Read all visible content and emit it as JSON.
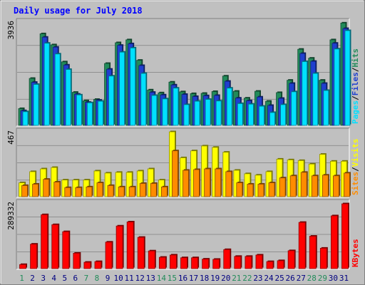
{
  "colors": {
    "background": "#c0c0c0",
    "plot_bg": "#c0c0c0",
    "title": "#0000ff",
    "hits": "#228b5a",
    "files": "#1f3fcf",
    "pages": "#00e0ff",
    "visits": "#ffff00",
    "sites": "#ff8c00",
    "kbytes": "#ff0000",
    "weekend_label": "#228b5a",
    "weekday_label": "#000080"
  },
  "chart_data": [
    {
      "type": "bar",
      "title": "Daily usage for July 2018",
      "ymax_label": "3936",
      "ymax": 3936,
      "legend": [
        {
          "name": "Pages",
          "color": "#00e0ff"
        },
        {
          "name": "Files",
          "color": "#1f3fcf"
        },
        {
          "name": "Hits",
          "color": "#228b5a"
        }
      ],
      "categories": [
        "1",
        "2",
        "3",
        "4",
        "5",
        "6",
        "7",
        "8",
        "9",
        "10",
        "11",
        "12",
        "13",
        "14",
        "15",
        "16",
        "17",
        "18",
        "19",
        "20",
        "21",
        "22",
        "23",
        "24",
        "25",
        "26",
        "27",
        "28",
        "29",
        "30",
        "31"
      ],
      "weekend_days": [
        "1",
        "7",
        "8",
        "14",
        "15",
        "21",
        "22",
        "28",
        "29"
      ],
      "series": [
        {
          "name": "Hits",
          "values": [
            640,
            1790,
            3490,
            3070,
            2420,
            1260,
            940,
            990,
            2360,
            3150,
            3260,
            2480,
            1350,
            1240,
            1650,
            1280,
            1210,
            1220,
            1290,
            1880,
            1300,
            1040,
            1300,
            920,
            1250,
            1720,
            2900,
            2560,
            1720,
            3260,
            3900
          ]
        },
        {
          "name": "Files",
          "values": [
            560,
            1640,
            3360,
            2980,
            2300,
            1190,
            880,
            960,
            2140,
            3050,
            3110,
            2280,
            1260,
            1160,
            1540,
            1180,
            1100,
            1130,
            1140,
            1680,
            1040,
            940,
            1080,
            760,
            1030,
            1600,
            2740,
            2440,
            1600,
            3130,
            3690
          ]
        },
        {
          "name": "Pages",
          "values": [
            520,
            1560,
            3130,
            2720,
            2130,
            1160,
            860,
            920,
            1880,
            2790,
            2950,
            1980,
            1140,
            1010,
            1420,
            790,
            920,
            990,
            930,
            1420,
            830,
            810,
            730,
            490,
            790,
            1280,
            2430,
            1980,
            1330,
            2910,
            3610
          ]
        }
      ]
    },
    {
      "type": "bar",
      "ymax_label": "467",
      "ymax": 467,
      "legend": [
        {
          "name": "Sites",
          "color": "#ff8c00"
        },
        {
          "name": "Visits",
          "color": "#ffff00"
        }
      ],
      "categories": [
        "1",
        "2",
        "3",
        "4",
        "5",
        "6",
        "7",
        "8",
        "9",
        "10",
        "11",
        "12",
        "13",
        "14",
        "15",
        "16",
        "17",
        "18",
        "19",
        "20",
        "21",
        "22",
        "23",
        "24",
        "25",
        "26",
        "27",
        "28",
        "29",
        "30",
        "31"
      ],
      "series": [
        {
          "name": "Visits",
          "values": [
            100,
            180,
            200,
            210,
            120,
            120,
            120,
            185,
            170,
            175,
            175,
            185,
            200,
            120,
            467,
            280,
            330,
            365,
            355,
            320,
            190,
            165,
            155,
            180,
            270,
            265,
            260,
            235,
            305,
            255,
            255
          ]
        },
        {
          "name": "Sites",
          "values": [
            80,
            90,
            125,
            105,
            65,
            65,
            70,
            100,
            80,
            70,
            70,
            95,
            95,
            70,
            330,
            190,
            195,
            200,
            200,
            180,
            100,
            90,
            90,
            100,
            135,
            150,
            175,
            150,
            155,
            150,
            170
          ]
        }
      ]
    },
    {
      "type": "bar",
      "ymax_label": "289332",
      "ymax": 289332,
      "legend": [
        {
          "name": "KBytes",
          "color": "#ff0000"
        }
      ],
      "categories": [
        "1",
        "2",
        "3",
        "4",
        "5",
        "6",
        "7",
        "8",
        "9",
        "10",
        "11",
        "12",
        "13",
        "14",
        "15",
        "16",
        "17",
        "18",
        "19",
        "20",
        "21",
        "22",
        "23",
        "24",
        "25",
        "26",
        "27",
        "28",
        "29",
        "30",
        "31"
      ],
      "series": [
        {
          "name": "KBytes",
          "values": [
            18000,
            108000,
            238000,
            194000,
            163000,
            68000,
            28000,
            31000,
            117000,
            188000,
            206000,
            138000,
            78000,
            50000,
            60000,
            48000,
            48000,
            42000,
            41000,
            84000,
            54000,
            54000,
            60000,
            31000,
            35000,
            79000,
            204000,
            143000,
            90000,
            233000,
            286000
          ]
        }
      ]
    }
  ]
}
